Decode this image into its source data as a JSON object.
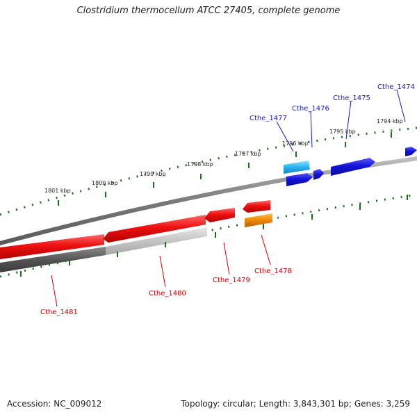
{
  "title": "Clostridium thermocellum ATCC 27405, complete genome",
  "accession_text": "Accession: NC_009012",
  "topology_text": "Topology: circular; Length: 3,843,301 bp; Genes: 3,259",
  "colors": {
    "forward_strand": "#1a1ad6",
    "forward_light": "#33bbee",
    "reverse_strand": "#e31a1c",
    "reverse_alt": "#ee8800",
    "gray_backbone": "#777777",
    "gc_dark": "#555555",
    "gc_light": "#c8c8c8",
    "tick_green": "#1b6d1b",
    "label_blue": "#1a1ab4",
    "label_red": "#cc0000"
  },
  "scale_ticks": [
    {
      "label": "1801 kbp"
    },
    {
      "label": "1800 kbp"
    },
    {
      "label": "1799 kbp"
    },
    {
      "label": "1798 kbp"
    },
    {
      "label": "1797 kbp"
    },
    {
      "label": "1796 kbp"
    },
    {
      "label": "1795 kbp"
    },
    {
      "label": "1794 kbp"
    }
  ],
  "forward_genes": [
    {
      "name": "Cthe_1477"
    },
    {
      "name": "Cthe_1476"
    },
    {
      "name": "Cthe_1475"
    },
    {
      "name": "Cthe_1474"
    }
  ],
  "reverse_genes": [
    {
      "name": "Cthe_1481"
    },
    {
      "name": "Cthe_1480"
    },
    {
      "name": "Cthe_1479"
    },
    {
      "name": "Cthe_1478"
    }
  ]
}
